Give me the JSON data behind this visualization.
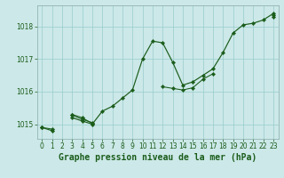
{
  "title": "Graphe pression niveau de la mer (hPa)",
  "bg_color": "#cce8e8",
  "grid_color": "#99cccc",
  "line_color": "#1a5c1a",
  "xlabel_color": "#1a5c1a",
  "x_values": [
    0,
    1,
    2,
    3,
    4,
    5,
    6,
    7,
    8,
    9,
    10,
    11,
    12,
    13,
    14,
    15,
    16,
    17,
    18,
    19,
    20,
    21,
    22,
    23
  ],
  "y_main": [
    1014.9,
    1014.8,
    null,
    1015.2,
    1015.1,
    1015.0,
    1015.4,
    1015.55,
    1015.8,
    1016.05,
    1017.0,
    1017.55,
    1017.5,
    1016.9,
    1016.2,
    1016.3,
    1016.5,
    1016.7,
    1017.2,
    1017.8,
    1018.05,
    1018.1,
    1018.2,
    1018.4
  ],
  "y_trend1": [
    1014.9,
    1014.85,
    null,
    1015.28,
    1015.15,
    1015.05,
    null,
    null,
    null,
    null,
    null,
    null,
    1016.15,
    1016.1,
    1016.05,
    1016.12,
    1016.38,
    1016.55,
    null,
    null,
    null,
    null,
    null,
    1018.35
  ],
  "y_trend2": [
    1014.9,
    null,
    null,
    1015.3,
    1015.2,
    1015.02,
    null,
    null,
    null,
    null,
    null,
    null,
    null,
    null,
    null,
    null,
    null,
    null,
    null,
    null,
    null,
    null,
    null,
    1018.3
  ],
  "ylim": [
    1014.55,
    1018.65
  ],
  "yticks": [
    1015,
    1016,
    1017,
    1018
  ],
  "xticks": [
    0,
    1,
    2,
    3,
    4,
    5,
    6,
    7,
    8,
    9,
    10,
    11,
    12,
    13,
    14,
    15,
    16,
    17,
    18,
    19,
    20,
    21,
    22,
    23
  ],
  "title_fontsize": 7.0,
  "tick_fontsize": 5.5,
  "lw_main": 0.85,
  "lw_trend": 0.75,
  "ms": 2.2
}
